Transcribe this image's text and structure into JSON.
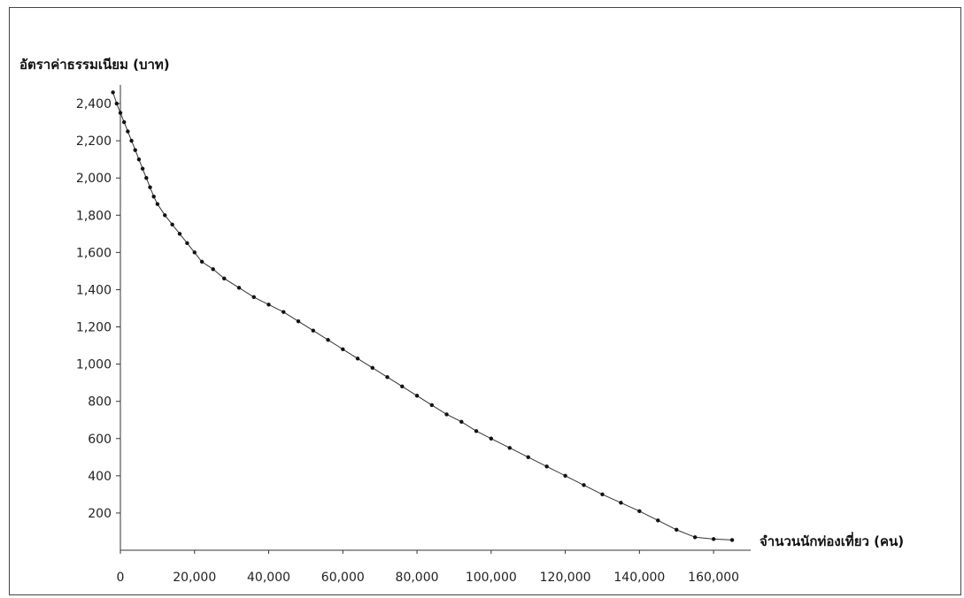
{
  "chart_data": {
    "type": "line",
    "title": "",
    "ylabel": "อัตราค่าธรรมเนียม (บาท)",
    "xlabel": "จำนวนนักท่องเที่ยว (คน)",
    "xlim": [
      0,
      170000
    ],
    "ylim": [
      0,
      2500
    ],
    "x_ticks": [
      0,
      20000,
      40000,
      60000,
      80000,
      100000,
      120000,
      140000,
      160000
    ],
    "x_tick_labels": [
      "0",
      "20,000",
      "40,000",
      "60,000",
      "80,000",
      "100,000",
      "120,000",
      "140,000",
      "160,000"
    ],
    "y_ticks": [
      200,
      400,
      600,
      800,
      1000,
      1200,
      1400,
      1600,
      1800,
      2000,
      2200,
      2400
    ],
    "y_tick_labels": [
      "200",
      "400",
      "600",
      "800",
      "1,000",
      "1,200",
      "1,400",
      "1,600",
      "1,800",
      "2,000",
      "2,200",
      "2,400"
    ],
    "grid": false,
    "series": [
      {
        "x": [
          -2000,
          -1000,
          0,
          1000,
          2000,
          3000,
          4000,
          5000,
          6000,
          7000,
          8000,
          9000,
          10000,
          12000,
          14000,
          16000,
          18000,
          20000,
          22000,
          25000,
          28000,
          32000,
          36000,
          40000,
          44000,
          48000,
          52000,
          56000,
          60000,
          64000,
          68000,
          72000,
          76000,
          80000,
          84000,
          88000,
          92000,
          96000,
          100000,
          105000,
          110000,
          115000,
          120000,
          125000,
          130000,
          135000,
          140000,
          145000,
          150000,
          155000,
          160000,
          165000
        ],
        "y": [
          2460,
          2400,
          2350,
          2300,
          2250,
          2200,
          2150,
          2100,
          2050,
          2000,
          1950,
          1900,
          1860,
          1800,
          1750,
          1700,
          1650,
          1600,
          1550,
          1510,
          1460,
          1410,
          1360,
          1320,
          1280,
          1230,
          1180,
          1130,
          1080,
          1030,
          980,
          930,
          880,
          830,
          780,
          730,
          690,
          640,
          600,
          550,
          500,
          450,
          400,
          350,
          300,
          255,
          210,
          160,
          110,
          70,
          60,
          55
        ]
      }
    ]
  }
}
